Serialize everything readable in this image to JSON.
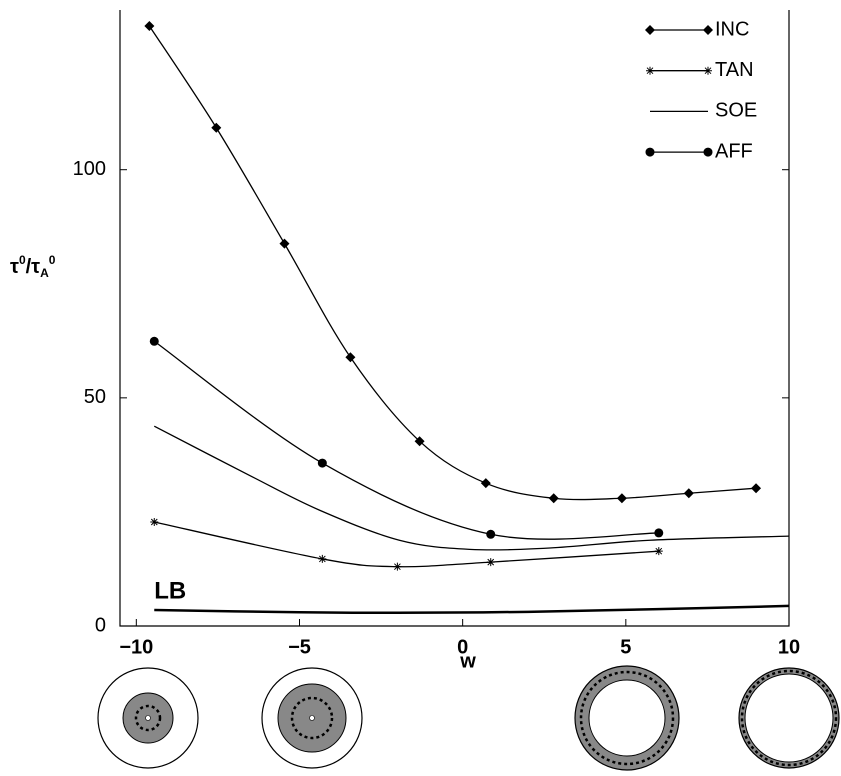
{
  "chart_data": {
    "type": "line",
    "xlabel": "w",
    "ylabel": [
      "τ",
      "0",
      "/τ",
      "A",
      "0"
    ],
    "xlim": [
      -10.5,
      10
    ],
    "ylim": [
      0,
      135
    ],
    "xticks": [
      {
        "value": -10,
        "label": "−10"
      },
      {
        "value": -5,
        "label": "−5"
      },
      0,
      5,
      10
    ],
    "yticks": [
      0,
      50,
      100
    ],
    "legend": "upper right",
    "series": [
      {
        "name": "INC",
        "color": "#000000",
        "marker": "diamond",
        "x": [
          -9.6,
          -7.55,
          -5.46,
          -3.44,
          -1.32,
          0.71,
          2.79,
          4.88,
          6.93,
          8.99
        ],
        "values": [
          131.5,
          109.2,
          83.8,
          58.9,
          40.5,
          31.3,
          28.0,
          28.0,
          29.1,
          30.2
        ]
      },
      {
        "name": "TAN",
        "color": "#000000",
        "marker": "star",
        "x": [
          -9.45,
          -4.3,
          -2.0,
          0.86,
          6.01
        ],
        "values": [
          22.8,
          14.7,
          13.0,
          14.0,
          16.4
        ]
      },
      {
        "name": "SOE",
        "color": "#000000",
        "marker": "none",
        "x": [
          -9.45,
          -6.53,
          -4.39,
          -1.94,
          0.21,
          2.67,
          5.74,
          10
        ],
        "values": [
          43.8,
          33.0,
          25.4,
          18.8,
          16.8,
          17.1,
          18.8,
          19.7
        ]
      },
      {
        "name": "AFF",
        "color": "#000000",
        "marker": "circle",
        "x": [
          -9.45,
          -4.3,
          0.86,
          6.01
        ],
        "values": [
          62.4,
          35.7,
          20.1,
          20.4
        ]
      }
    ],
    "bound": {
      "label": "LB",
      "color": "#000000",
      "x": [
        -9.45,
        -5,
        -2,
        2,
        6,
        10
      ],
      "values": [
        3.5,
        3.0,
        2.9,
        3.1,
        3.7,
        4.4
      ]
    }
  }
}
